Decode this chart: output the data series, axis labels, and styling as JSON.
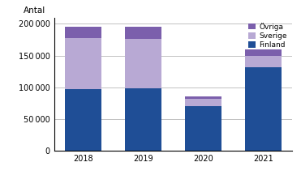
{
  "years": [
    "2018",
    "2019",
    "2020",
    "2021"
  ],
  "finland": [
    97000,
    98000,
    70000,
    132000
  ],
  "sverige": [
    80000,
    78000,
    11000,
    18000
  ],
  "ovriga": [
    18000,
    19000,
    5000,
    10000
  ],
  "colors": {
    "finland": "#1f4e96",
    "sverige": "#b8a9d4",
    "ovriga": "#7b5fac"
  },
  "ylabel": "Antal",
  "ylim": [
    0,
    210000
  ],
  "yticks": [
    0,
    50000,
    100000,
    150000,
    200000
  ],
  "bar_width": 0.6,
  "figsize": [
    3.71,
    2.16
  ],
  "dpi": 100
}
